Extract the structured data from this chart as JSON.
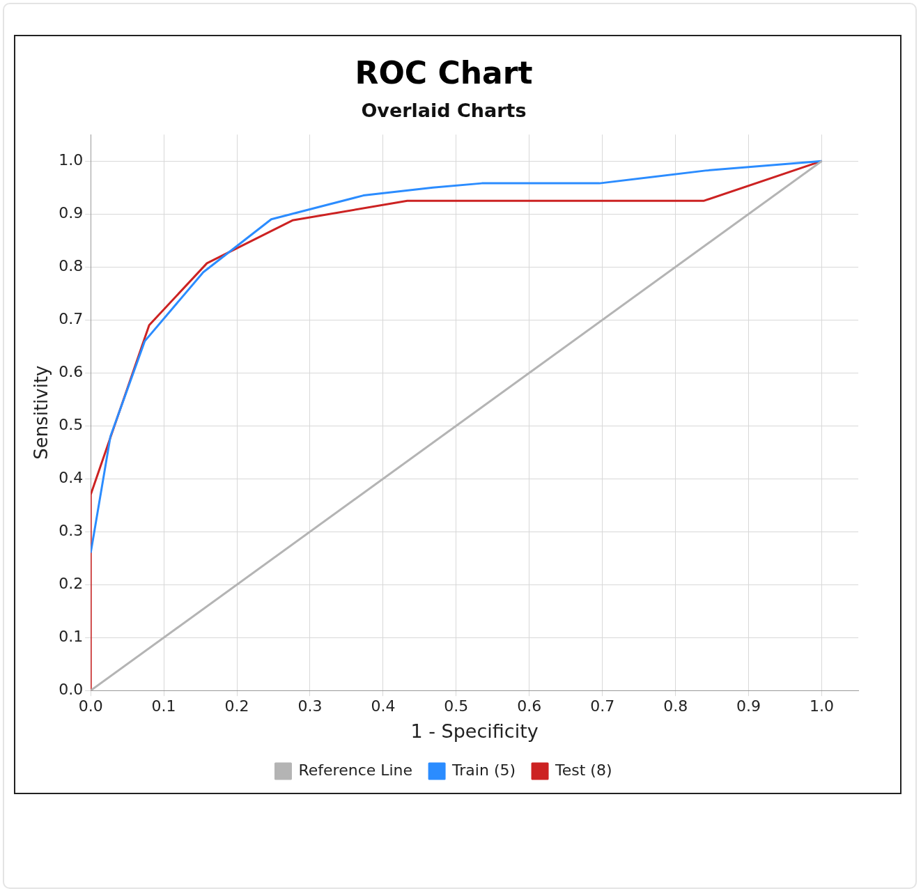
{
  "chart_data": {
    "type": "line",
    "title": "ROC Chart",
    "subtitle": "Overlaid Charts",
    "xlabel": "1 - Specificity",
    "ylabel": "Sensitivity",
    "xlim": [
      0,
      1.05
    ],
    "ylim": [
      0,
      1.05
    ],
    "xticks": [
      {
        "value": 0,
        "label": "0.0"
      },
      {
        "value": 0.1,
        "label": "0.1"
      },
      {
        "value": 0.2,
        "label": "0.2"
      },
      {
        "value": 0.3,
        "label": "0.3"
      },
      {
        "value": 0.4,
        "label": "0.4"
      },
      {
        "value": 0.5,
        "label": "0.5"
      },
      {
        "value": 0.6,
        "label": "0.6"
      },
      {
        "value": 0.7,
        "label": "0.7"
      },
      {
        "value": 0.8,
        "label": "0.8"
      },
      {
        "value": 0.9,
        "label": "0.9"
      },
      {
        "value": 1,
        "label": "1.0"
      }
    ],
    "yticks": [
      {
        "value": 0,
        "label": "0.0"
      },
      {
        "value": 0.1,
        "label": "0.1"
      },
      {
        "value": 0.2,
        "label": "0.2"
      },
      {
        "value": 0.3,
        "label": "0.3"
      },
      {
        "value": 0.4,
        "label": "0.4"
      },
      {
        "value": 0.5,
        "label": "0.5"
      },
      {
        "value": 0.6,
        "label": "0.6"
      },
      {
        "value": 0.7,
        "label": "0.7"
      },
      {
        "value": 0.8,
        "label": "0.8"
      },
      {
        "value": 0.9,
        "label": "0.9"
      },
      {
        "value": 1,
        "label": "1.0"
      }
    ],
    "series": [
      {
        "name": "Reference Line",
        "color": "#b4b4b4",
        "x": [
          0,
          1
        ],
        "values": [
          0,
          1
        ]
      },
      {
        "name": "Train (5)",
        "color": "#2b8cff",
        "x": [
          0,
          0.027,
          0.074,
          0.154,
          0.247,
          0.373,
          0.468,
          0.535,
          0.696,
          0.841,
          1
        ],
        "values": [
          0.26,
          0.48,
          0.66,
          0.79,
          0.89,
          0.935,
          0.95,
          0.958,
          0.958,
          0.982,
          1
        ]
      },
      {
        "name": "Test (8)",
        "color": "#cc2222",
        "x": [
          0,
          0,
          0.08,
          0.159,
          0.276,
          0.433,
          0.839,
          1
        ],
        "values": [
          0,
          0.37,
          0.69,
          0.807,
          0.888,
          0.925,
          0.925,
          1
        ]
      }
    ],
    "grid": true,
    "legend": "bottom",
    "marker": "none",
    "line_style": "solid"
  }
}
